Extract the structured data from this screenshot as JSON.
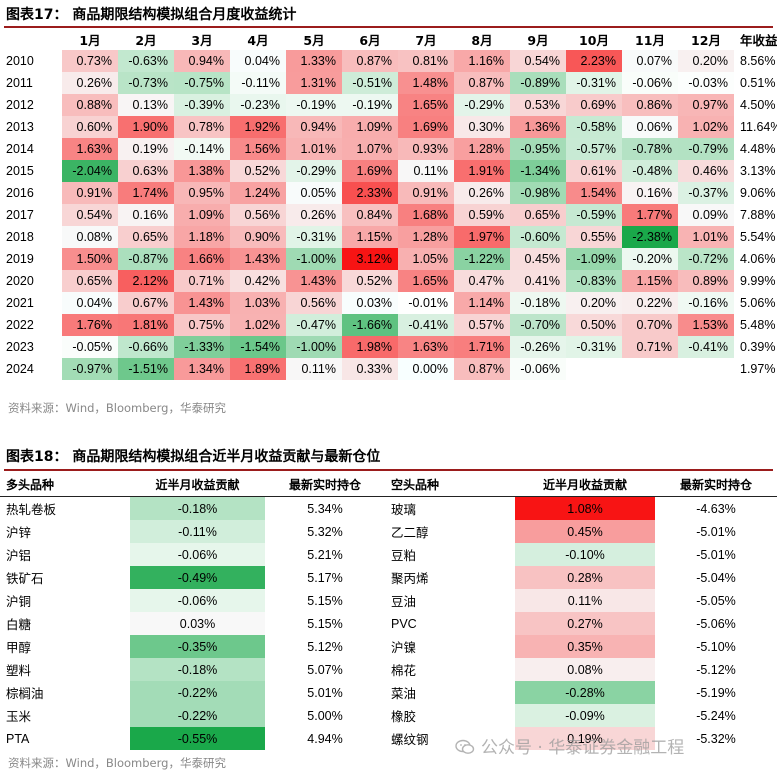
{
  "fig17": {
    "title": "图表17：  商品期限结构模拟组合月度收益统计",
    "headers": [
      "",
      "1月",
      "2月",
      "3月",
      "4月",
      "5月",
      "6月",
      "7月",
      "8月",
      "9月",
      "10月",
      "11月",
      "12月",
      "年收益"
    ],
    "rows": [
      {
        "year": "2010",
        "vals": [
          "0.73%",
          "-0.63%",
          "0.94%",
          "0.04%",
          "1.33%",
          "0.87%",
          "0.81%",
          "1.16%",
          "0.54%",
          "2.23%",
          "0.07%",
          "0.20%"
        ],
        "annual": "8.56%"
      },
      {
        "year": "2011",
        "vals": [
          "0.26%",
          "-0.73%",
          "-0.75%",
          "-0.11%",
          "1.31%",
          "-0.51%",
          "1.48%",
          "0.87%",
          "-0.89%",
          "-0.31%",
          "-0.06%",
          "-0.03%"
        ],
        "annual": "0.51%"
      },
      {
        "year": "2012",
        "vals": [
          "0.88%",
          "0.13%",
          "-0.39%",
          "-0.23%",
          "-0.19%",
          "-0.19%",
          "1.65%",
          "-0.29%",
          "0.53%",
          "0.69%",
          "0.86%",
          "0.97%"
        ],
        "annual": "4.50%"
      },
      {
        "year": "2013",
        "vals": [
          "0.60%",
          "1.90%",
          "0.78%",
          "1.92%",
          "0.94%",
          "1.09%",
          "1.69%",
          "0.30%",
          "1.36%",
          "-0.58%",
          "0.06%",
          "1.02%"
        ],
        "annual": "11.64%"
      },
      {
        "year": "2014",
        "vals": [
          "1.63%",
          "0.19%",
          "-0.14%",
          "1.56%",
          "1.01%",
          "1.07%",
          "0.93%",
          "1.28%",
          "-0.95%",
          "-0.57%",
          "-0.78%",
          "-0.79%"
        ],
        "annual": "4.48%"
      },
      {
        "year": "2015",
        "vals": [
          "-2.04%",
          "0.63%",
          "1.38%",
          "0.52%",
          "-0.29%",
          "1.69%",
          "0.11%",
          "1.91%",
          "-1.34%",
          "0.61%",
          "-0.48%",
          "0.46%"
        ],
        "annual": "3.13%"
      },
      {
        "year": "2016",
        "vals": [
          "0.91%",
          "1.74%",
          "0.95%",
          "1.24%",
          "0.05%",
          "2.33%",
          "0.91%",
          "0.26%",
          "-0.98%",
          "1.54%",
          "0.16%",
          "-0.37%"
        ],
        "annual": "9.06%"
      },
      {
        "year": "2017",
        "vals": [
          "0.54%",
          "0.16%",
          "1.09%",
          "0.56%",
          "0.26%",
          "0.84%",
          "1.68%",
          "0.59%",
          "0.65%",
          "-0.59%",
          "1.77%",
          "0.09%"
        ],
        "annual": "7.88%"
      },
      {
        "year": "2018",
        "vals": [
          "0.08%",
          "0.65%",
          "1.18%",
          "0.90%",
          "-0.31%",
          "1.15%",
          "1.28%",
          "1.97%",
          "-0.60%",
          "0.55%",
          "-2.38%",
          "1.01%"
        ],
        "annual": "5.54%"
      },
      {
        "year": "2019",
        "vals": [
          "1.50%",
          "-0.87%",
          "1.66%",
          "1.43%",
          "-1.00%",
          "3.12%",
          "1.05%",
          "-1.22%",
          "0.45%",
          "-1.09%",
          "-0.20%",
          "-0.72%"
        ],
        "annual": "4.06%"
      },
      {
        "year": "2020",
        "vals": [
          "0.65%",
          "2.12%",
          "0.71%",
          "0.42%",
          "1.43%",
          "0.52%",
          "1.65%",
          "0.47%",
          "0.41%",
          "-0.83%",
          "1.15%",
          "0.89%"
        ],
        "annual": "9.99%"
      },
      {
        "year": "2021",
        "vals": [
          "0.04%",
          "0.67%",
          "1.43%",
          "1.03%",
          "0.56%",
          "0.03%",
          "-0.01%",
          "1.14%",
          "-0.18%",
          "0.20%",
          "0.22%",
          "-0.16%"
        ],
        "annual": "5.06%"
      },
      {
        "year": "2022",
        "vals": [
          "1.76%",
          "1.81%",
          "0.75%",
          "1.02%",
          "-0.47%",
          "-1.66%",
          "-0.41%",
          "0.57%",
          "-0.70%",
          "0.50%",
          "0.70%",
          "1.53%"
        ],
        "annual": "5.48%"
      },
      {
        "year": "2023",
        "vals": [
          "-0.05%",
          "-0.66%",
          "-1.33%",
          "-1.54%",
          "-1.00%",
          "1.98%",
          "1.63%",
          "1.71%",
          "-0.26%",
          "-0.31%",
          "0.71%",
          "-0.41%"
        ],
        "annual": "0.39%"
      },
      {
        "year": "2024",
        "vals": [
          "-0.97%",
          "-1.51%",
          "1.34%",
          "1.89%",
          "0.11%",
          "0.33%",
          "0.00%",
          "0.87%",
          "-0.06%",
          "",
          "",
          ""
        ],
        "annual": "1.97%"
      }
    ],
    "source": "资料来源：Wind，Bloomberg，华泰研究"
  },
  "fig18": {
    "title": "图表18：  商品期限结构模拟组合近半月收益贡献与最新仓位",
    "headers": [
      "多头品种",
      "近半月收益贡献",
      "最新实时持仓",
      "空头品种",
      "近半月收益贡献",
      "最新实时持仓"
    ],
    "long": [
      {
        "name": "热轧卷板",
        "contrib": "-0.18%",
        "pos": "5.34%"
      },
      {
        "name": "沪锌",
        "contrib": "-0.11%",
        "pos": "5.32%"
      },
      {
        "name": "沪铝",
        "contrib": "-0.06%",
        "pos": "5.21%"
      },
      {
        "name": "铁矿石",
        "contrib": "-0.49%",
        "pos": "5.17%"
      },
      {
        "name": "沪铜",
        "contrib": "-0.06%",
        "pos": "5.15%"
      },
      {
        "name": "白糖",
        "contrib": "0.03%",
        "pos": "5.15%"
      },
      {
        "name": "甲醇",
        "contrib": "-0.35%",
        "pos": "5.12%"
      },
      {
        "name": "塑料",
        "contrib": "-0.18%",
        "pos": "5.07%"
      },
      {
        "name": "棕榈油",
        "contrib": "-0.22%",
        "pos": "5.01%"
      },
      {
        "name": "玉米",
        "contrib": "-0.22%",
        "pos": "5.00%"
      },
      {
        "name": "PTA",
        "contrib": "-0.55%",
        "pos": "4.94%"
      }
    ],
    "short": [
      {
        "name": "玻璃",
        "contrib": "1.08%",
        "pos": "-4.63%"
      },
      {
        "name": "乙二醇",
        "contrib": "0.45%",
        "pos": "-5.01%"
      },
      {
        "name": "豆粕",
        "contrib": "-0.10%",
        "pos": "-5.01%"
      },
      {
        "name": "聚丙烯",
        "contrib": "0.28%",
        "pos": "-5.04%"
      },
      {
        "name": "豆油",
        "contrib": "0.11%",
        "pos": "-5.05%"
      },
      {
        "name": "PVC",
        "contrib": "0.27%",
        "pos": "-5.06%"
      },
      {
        "name": "沪镍",
        "contrib": "0.35%",
        "pos": "-5.10%"
      },
      {
        "name": "棉花",
        "contrib": "0.08%",
        "pos": "-5.12%"
      },
      {
        "name": "菜油",
        "contrib": "-0.28%",
        "pos": "-5.19%"
      },
      {
        "name": "橡胶",
        "contrib": "-0.09%",
        "pos": "-5.24%"
      },
      {
        "name": "螺纹钢",
        "contrib": "0.19%",
        "pos": "-5.32%"
      }
    ],
    "source": "资料来源：Wind，Bloomberg，华泰研究"
  },
  "watermark": {
    "text": "公众号 · 华泰证券金融工程"
  },
  "colors": {
    "pos_max": "#f81414",
    "neg_max": "#1aa84a",
    "rule": "#9b1c1c"
  }
}
